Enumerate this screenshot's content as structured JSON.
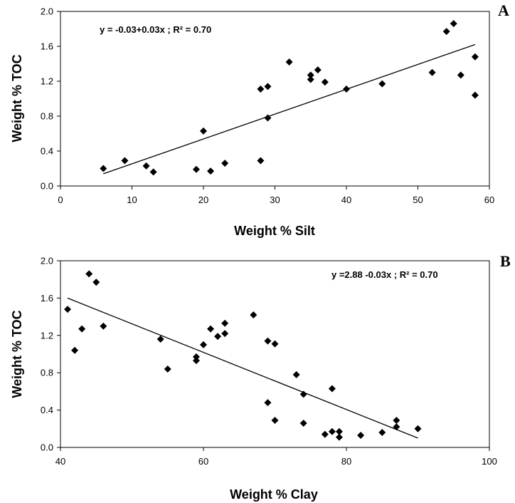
{
  "chart_data": [
    {
      "type": "scatter",
      "panel_label": "A",
      "xlabel": "Weight % Silt",
      "ylabel": "Weight % TOC",
      "xlim": [
        0,
        60
      ],
      "ylim": [
        0,
        2.0
      ],
      "x_ticks": [
        "0",
        "10",
        "20",
        "30",
        "40",
        "50",
        "60"
      ],
      "y_ticks": [
        "0.0",
        "0.4",
        "0.8",
        "1.2",
        "1.6",
        "2.0"
      ],
      "equation": "y = -0.03+0.03x ; R² = 0.70",
      "trendline": {
        "x": [
          6,
          58
        ],
        "y": [
          0.14,
          1.62
        ]
      },
      "grid": false,
      "points": [
        {
          "x": 6,
          "y": 0.2
        },
        {
          "x": 9,
          "y": 0.29
        },
        {
          "x": 12,
          "y": 0.23
        },
        {
          "x": 13,
          "y": 0.16
        },
        {
          "x": 19,
          "y": 0.19
        },
        {
          "x": 20,
          "y": 0.63
        },
        {
          "x": 21,
          "y": 0.17
        },
        {
          "x": 23,
          "y": 0.26
        },
        {
          "x": 28,
          "y": 0.29
        },
        {
          "x": 28,
          "y": 1.11
        },
        {
          "x": 29,
          "y": 1.14
        },
        {
          "x": 29,
          "y": 0.78
        },
        {
          "x": 32,
          "y": 1.42
        },
        {
          "x": 35,
          "y": 1.27
        },
        {
          "x": 35,
          "y": 1.22
        },
        {
          "x": 36,
          "y": 1.33
        },
        {
          "x": 37,
          "y": 1.19
        },
        {
          "x": 40,
          "y": 1.11
        },
        {
          "x": 45,
          "y": 1.17
        },
        {
          "x": 52,
          "y": 1.3
        },
        {
          "x": 54,
          "y": 1.77
        },
        {
          "x": 55,
          "y": 1.86
        },
        {
          "x": 56,
          "y": 1.27
        },
        {
          "x": 58,
          "y": 1.48
        },
        {
          "x": 58,
          "y": 1.04
        }
      ]
    },
    {
      "type": "scatter",
      "panel_label": "B",
      "xlabel": "Weight % Clay",
      "ylabel": "Weight % TOC",
      "xlim": [
        40,
        100
      ],
      "ylim": [
        0,
        2.0
      ],
      "x_ticks": [
        "40",
        "60",
        "80",
        "100"
      ],
      "y_ticks": [
        "0.0",
        "0.4",
        "0.8",
        "1.2",
        "1.6",
        "2.0"
      ],
      "equation": "y =2.88 -0.03x ; R² = 0.70",
      "trendline": {
        "x": [
          41,
          90
        ],
        "y": [
          1.6,
          0.1
        ]
      },
      "grid": false,
      "points": [
        {
          "x": 41,
          "y": 1.48
        },
        {
          "x": 42,
          "y": 1.04
        },
        {
          "x": 43,
          "y": 1.27
        },
        {
          "x": 44,
          "y": 1.86
        },
        {
          "x": 45,
          "y": 1.77
        },
        {
          "x": 46,
          "y": 1.3
        },
        {
          "x": 54,
          "y": 1.16
        },
        {
          "x": 55,
          "y": 0.84
        },
        {
          "x": 59,
          "y": 0.97
        },
        {
          "x": 59,
          "y": 0.93
        },
        {
          "x": 60,
          "y": 1.1
        },
        {
          "x": 61,
          "y": 1.27
        },
        {
          "x": 62,
          "y": 1.19
        },
        {
          "x": 63,
          "y": 1.33
        },
        {
          "x": 63,
          "y": 1.22
        },
        {
          "x": 67,
          "y": 1.42
        },
        {
          "x": 69,
          "y": 1.14
        },
        {
          "x": 69,
          "y": 0.48
        },
        {
          "x": 70,
          "y": 1.11
        },
        {
          "x": 70,
          "y": 0.29
        },
        {
          "x": 73,
          "y": 0.78
        },
        {
          "x": 74,
          "y": 0.57
        },
        {
          "x": 74,
          "y": 0.26
        },
        {
          "x": 77,
          "y": 0.14
        },
        {
          "x": 78,
          "y": 0.63
        },
        {
          "x": 78,
          "y": 0.17
        },
        {
          "x": 79,
          "y": 0.17
        },
        {
          "x": 79,
          "y": 0.11
        },
        {
          "x": 82,
          "y": 0.13
        },
        {
          "x": 85,
          "y": 0.16
        },
        {
          "x": 87,
          "y": 0.29
        },
        {
          "x": 87,
          "y": 0.22
        },
        {
          "x": 90,
          "y": 0.2
        }
      ]
    }
  ]
}
